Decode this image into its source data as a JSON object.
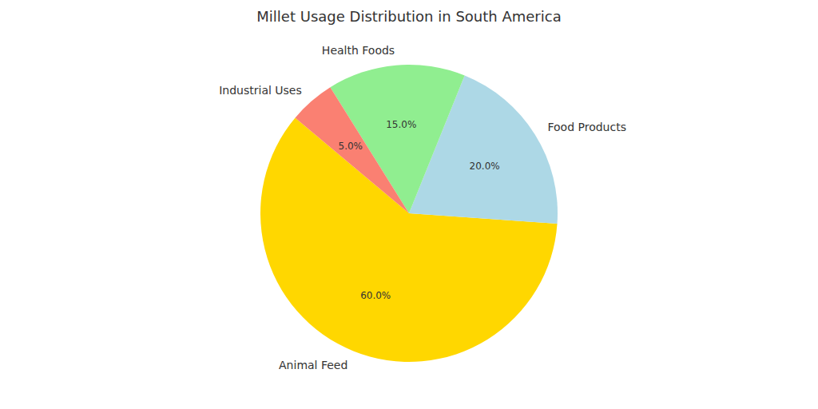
{
  "chart_data": {
    "type": "pie",
    "title": "Millet Usage Distribution in South America",
    "categories": [
      "Animal Feed",
      "Food Products",
      "Health Foods",
      "Industrial Uses"
    ],
    "values": [
      60,
      20,
      15,
      5
    ],
    "value_labels": [
      "60.0%",
      "20.0%",
      "15.0%",
      "5.0%"
    ],
    "colors": [
      "#ffd700",
      "#add8e6",
      "#90ee90",
      "#fa8072"
    ],
    "data_labels": true
  }
}
